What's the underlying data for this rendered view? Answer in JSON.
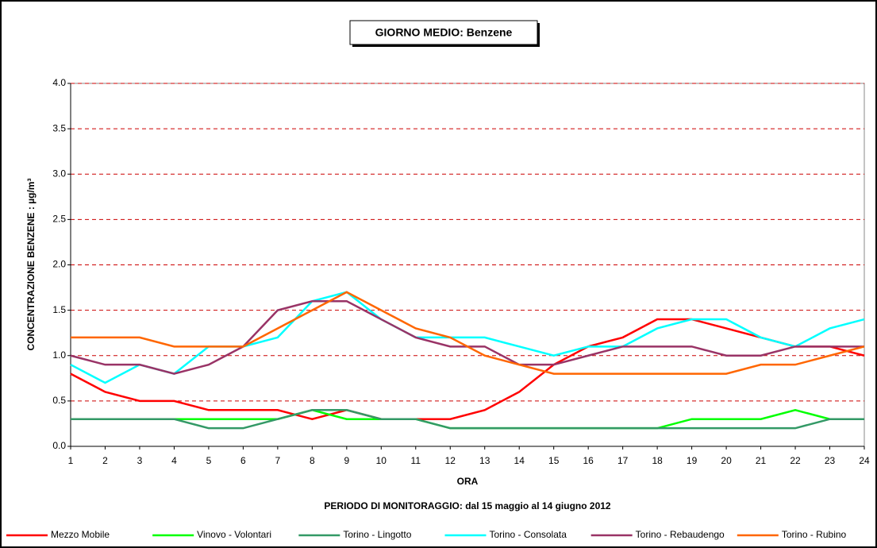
{
  "chart_data": {
    "type": "line",
    "title": "GIORNO MEDIO: Benzene",
    "y_label": "CONCENTRAZIONE  BENZENE  :  µg/m³",
    "x_label": "ORA",
    "subtitle": "PERIODO DI MONITORAGGIO: dal 15 maggio al 14 giugno 2012",
    "categories": [
      "1",
      "2",
      "3",
      "4",
      "5",
      "6",
      "7",
      "8",
      "9",
      "10",
      "11",
      "12",
      "13",
      "14",
      "15",
      "16",
      "17",
      "18",
      "19",
      "20",
      "21",
      "22",
      "23",
      "24"
    ],
    "series": [
      {
        "name": "Mezzo Mobile",
        "color": "#ff0000",
        "values": [
          0.8,
          0.6,
          0.5,
          0.5,
          0.4,
          0.4,
          0.4,
          0.3,
          0.4,
          0.3,
          0.3,
          0.3,
          0.4,
          0.6,
          0.9,
          1.1,
          1.2,
          1.4,
          1.4,
          1.3,
          1.2,
          1.1,
          1.1,
          1.0
        ]
      },
      {
        "name": "Vinovo - Volontari",
        "color": "#00ff00",
        "values": [
          0.3,
          0.3,
          0.3,
          0.3,
          0.3,
          0.3,
          0.3,
          0.4,
          0.3,
          0.3,
          0.3,
          0.2,
          0.2,
          0.2,
          0.2,
          0.2,
          0.2,
          0.2,
          0.3,
          0.3,
          0.3,
          0.4,
          0.3,
          0.3
        ]
      },
      {
        "name": "Torino - Lingotto",
        "color": "#339966",
        "values": [
          0.3,
          0.3,
          0.3,
          0.3,
          0.2,
          0.2,
          0.3,
          0.4,
          0.4,
          0.3,
          0.3,
          0.2,
          0.2,
          0.2,
          0.2,
          0.2,
          0.2,
          0.2,
          0.2,
          0.2,
          0.2,
          0.2,
          0.3,
          0.3
        ]
      },
      {
        "name": "Torino - Consolata",
        "color": "#00ffff",
        "values": [
          0.9,
          0.7,
          0.9,
          0.8,
          1.1,
          1.1,
          1.2,
          1.6,
          1.7,
          1.4,
          1.2,
          1.2,
          1.2,
          1.1,
          1.0,
          1.1,
          1.1,
          1.3,
          1.4,
          1.4,
          1.2,
          1.1,
          1.3,
          1.4
        ]
      },
      {
        "name": "Torino - Rebaudengo",
        "color": "#993366",
        "values": [
          1.0,
          0.9,
          0.9,
          0.8,
          0.9,
          1.1,
          1.5,
          1.6,
          1.6,
          1.4,
          1.2,
          1.1,
          1.1,
          0.9,
          0.9,
          1.0,
          1.1,
          1.1,
          1.1,
          1.0,
          1.0,
          1.1,
          1.1,
          1.1
        ]
      },
      {
        "name": "Torino - Rubino",
        "color": "#ff6600",
        "values": [
          1.2,
          1.2,
          1.2,
          1.1,
          1.1,
          1.1,
          1.3,
          1.5,
          1.7,
          1.5,
          1.3,
          1.2,
          1.0,
          0.9,
          0.8,
          0.8,
          0.8,
          0.8,
          0.8,
          0.8,
          0.9,
          0.9,
          1.0,
          1.1
        ]
      }
    ],
    "ylim": [
      0,
      4
    ],
    "yticks": [
      {
        "value": 0,
        "label": "0.0"
      },
      0.5,
      {
        "value": 1,
        "label": "1.0"
      },
      1.5,
      {
        "value": 2,
        "label": "2.0"
      },
      2.5,
      {
        "value": 3,
        "label": "3.0"
      },
      3.5,
      {
        "value": 4,
        "label": "4.0"
      }
    ],
    "grid": true,
    "grid_color": "#cc0000",
    "legend": "bottom"
  }
}
